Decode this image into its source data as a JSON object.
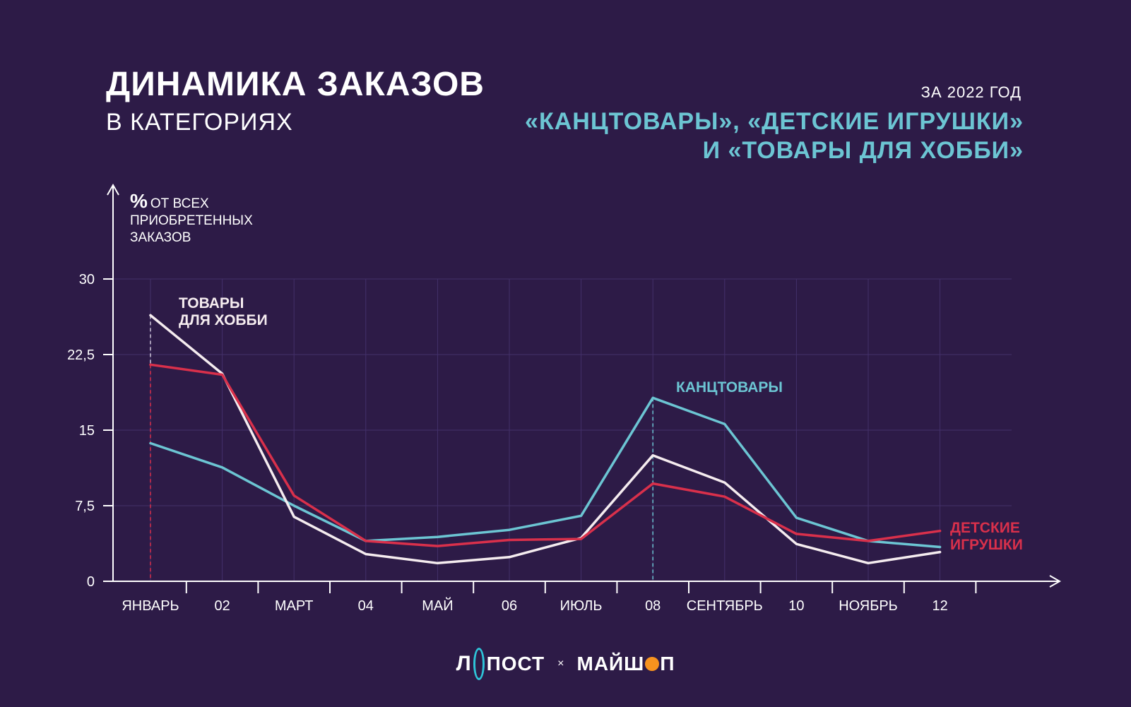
{
  "header": {
    "title": "ДИНАМИКА ЗАКАЗОВ",
    "period": "ЗА 2022 ГОД",
    "subtitle": "В КАТЕГОРИЯХ",
    "categories_line1": "«КАНЦТОВАРЫ», «ДЕТСКИЕ ИГРУШКИ»",
    "categories_line2": "И «ТОВАРЫ ДЛЯ ХОББИ»"
  },
  "chart_data": {
    "type": "line",
    "ylabel": [
      "% ОТ ВСЕХ",
      "ПРИОБРЕТЕННЫХ",
      "ЗАКАЗОВ"
    ],
    "ylabel_symbol": "%",
    "ylabel_rest": "ОТ ВСЕХ",
    "ylim": [
      0,
      30
    ],
    "y_ticks": [
      0,
      7.5,
      15,
      22.5,
      30
    ],
    "y_tick_labels": [
      "0",
      "7,5",
      "15",
      "22,5",
      "30"
    ],
    "categories": [
      "ЯНВАРЬ",
      "02",
      "МАРТ",
      "04",
      "МАЙ",
      "06",
      "ИЮЛЬ",
      "08",
      "СЕНТЯБРЬ",
      "10",
      "НОЯБРЬ",
      "12"
    ],
    "grid": true,
    "series": [
      {
        "name": "КАНЦТОВАРЫ",
        "color": "#6cc5d3",
        "values": [
          13.7,
          11.3,
          7.5,
          4.0,
          4.4,
          5.1,
          6.5,
          18.2,
          15.6,
          6.3,
          4.0,
          3.4
        ]
      },
      {
        "name": "ТОВАРЫ ДЛЯ ХОББИ",
        "label_lines": [
          "ТОВАРЫ",
          "ДЛЯ ХОББИ"
        ],
        "color": "#f5ecef",
        "values": [
          26.4,
          20.6,
          6.4,
          2.7,
          1.8,
          2.4,
          4.3,
          12.5,
          9.8,
          3.7,
          1.8,
          2.9
        ]
      },
      {
        "name": "ДЕТСКИЕ ИГРУШКИ",
        "label_lines": [
          "ДЕТСКИЕ",
          "ИГРУШКИ"
        ],
        "color": "#d9304b",
        "values": [
          21.5,
          20.5,
          8.5,
          4.0,
          3.5,
          4.1,
          4.2,
          9.7,
          8.4,
          4.7,
          4.0,
          5.0
        ]
      }
    ]
  },
  "logos": {
    "left": "ЛПОСТ",
    "left_tail": "ПОСТ",
    "separator": "×",
    "right": "МАЙШОП",
    "right_head": "МАЙШ",
    "right_tail": "П"
  },
  "colors": {
    "background": "#2d1b47",
    "grid": "#43306a",
    "axis": "#ffffff",
    "accent_teal": "#6cc5d3",
    "accent_red": "#d9304b",
    "logo_orange": "#f7931e"
  }
}
